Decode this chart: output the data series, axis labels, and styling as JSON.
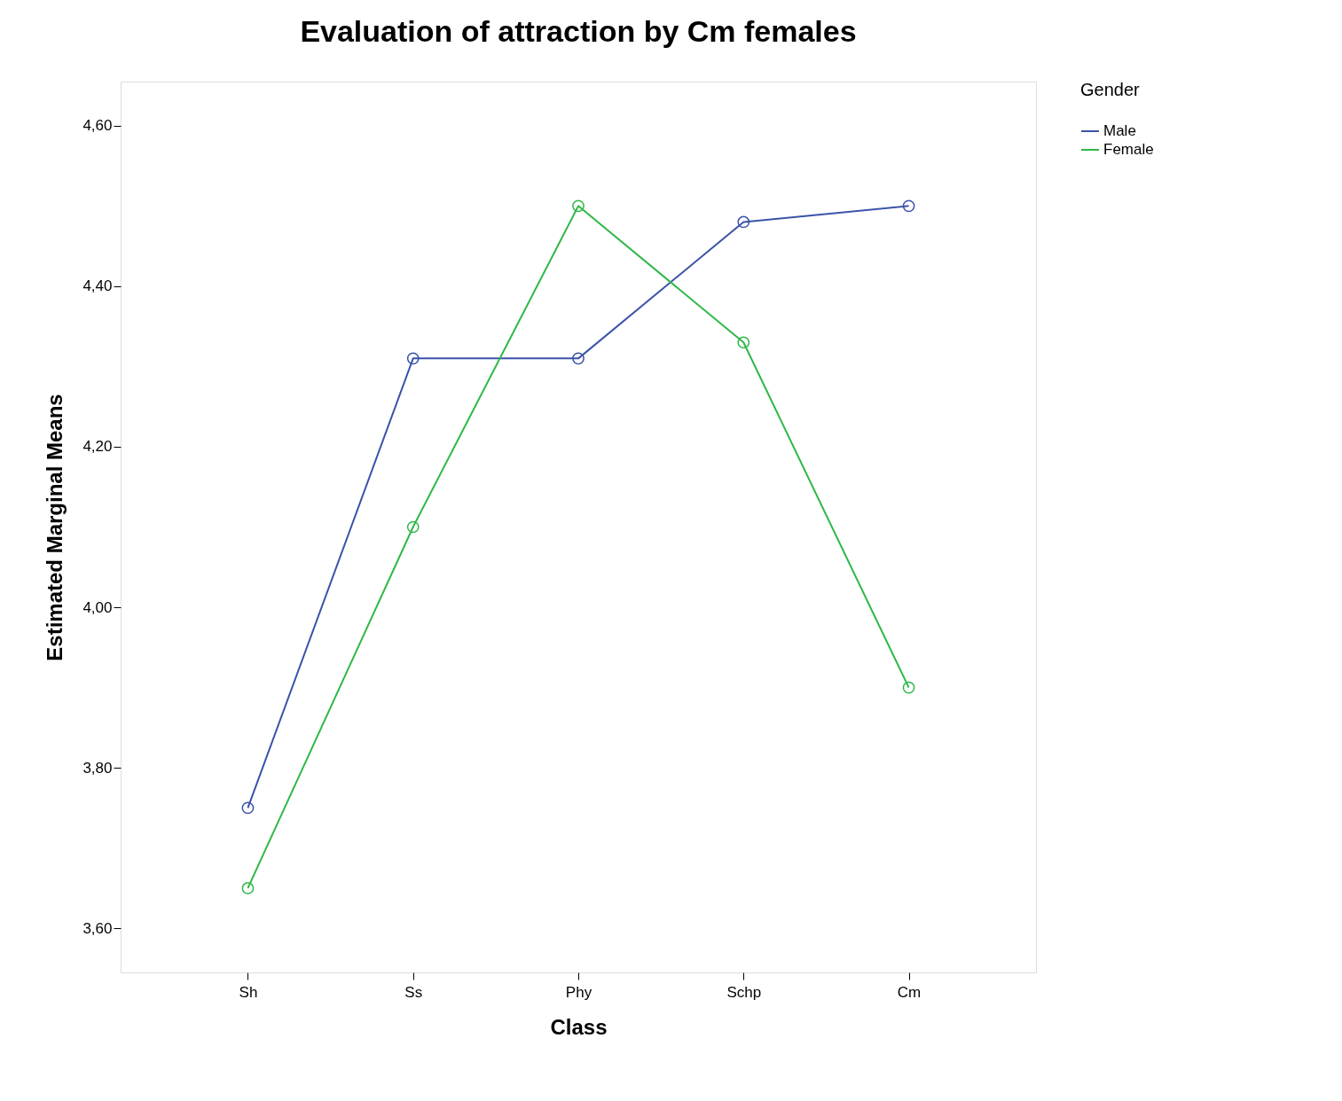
{
  "chart_data": {
    "type": "line",
    "title": "Evaluation of attraction by Cm females",
    "xlabel": "Class",
    "ylabel": "Estimated Marginal Means",
    "legend_title": "Gender",
    "categories": [
      "Sh",
      "Ss",
      "Phy",
      "Schp",
      "Cm"
    ],
    "series": [
      {
        "name": "Male",
        "color": "#3b53a8",
        "values": [
          3.75,
          4.31,
          4.31,
          4.48,
          4.5
        ]
      },
      {
        "name": "Female",
        "color": "#2eb847",
        "values": [
          3.65,
          4.1,
          4.5,
          4.33,
          3.9
        ]
      }
    ],
    "ylim": [
      3.545,
      4.655
    ],
    "yticks": [
      {
        "value": 3.6,
        "label": "3,60"
      },
      {
        "value": 3.8,
        "label": "3,80"
      },
      {
        "value": 4.0,
        "label": "4,00"
      },
      {
        "value": 4.2,
        "label": "4,20"
      },
      {
        "value": 4.4,
        "label": "4,40"
      },
      {
        "value": 4.6,
        "label": "4,60"
      }
    ],
    "grid": false,
    "legend": "top right",
    "marker": "circle",
    "line_style": "solid"
  }
}
